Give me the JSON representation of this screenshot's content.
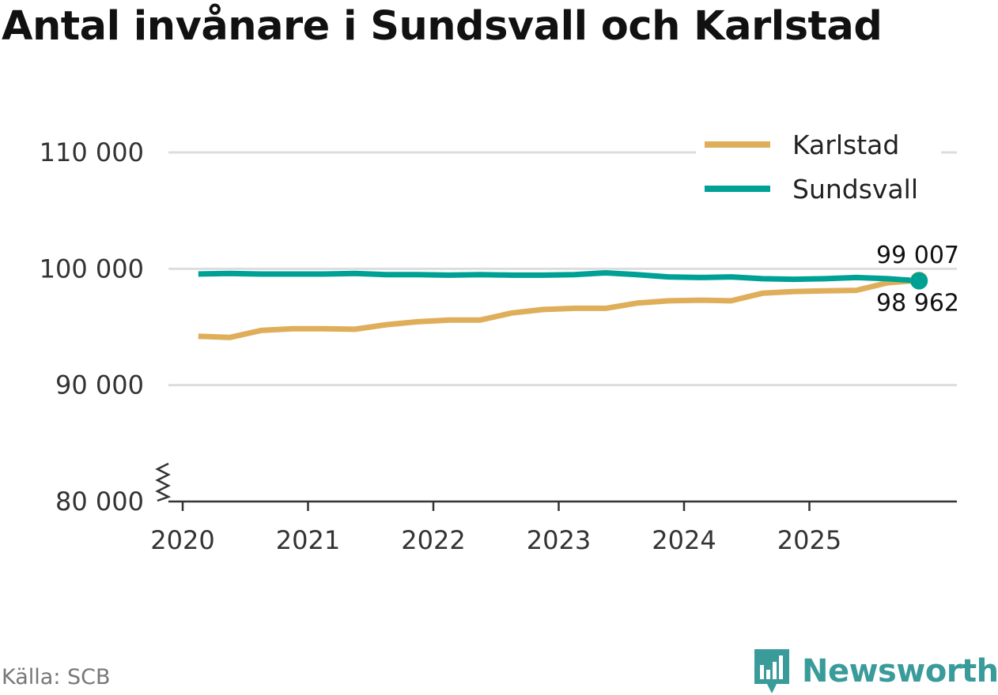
{
  "title": "Antal invånare i Sundsvall och Karlstad",
  "source": "Källa: SCB",
  "brand": "Newsworthy",
  "colors": {
    "karlstad": "#dfae5a",
    "sundsvall": "#00a195",
    "grid": "#dddddd",
    "axis": "#333333",
    "brand": "#3a9b9b"
  },
  "chart_data": {
    "type": "line",
    "title": "Antal invånare i Sundsvall och Karlstad",
    "xlabel": "",
    "ylabel": "",
    "ylim": [
      80000,
      110000
    ],
    "y_ticks": [
      80000,
      90000,
      100000,
      110000
    ],
    "y_tick_labels": [
      "80 000",
      "90 000",
      "100 000",
      "110 000"
    ],
    "x_range": [
      2020.0,
      2026.2
    ],
    "x_ticks": [
      2020,
      2021,
      2022,
      2023,
      2024,
      2025
    ],
    "x_tick_labels": [
      "2020",
      "2021",
      "2022",
      "2023",
      "2024",
      "2025"
    ],
    "grid": true,
    "y_axis_break": true,
    "legend": "top-right",
    "x": [
      2020.125,
      2020.375,
      2020.625,
      2020.875,
      2021.125,
      2021.375,
      2021.625,
      2021.875,
      2022.125,
      2022.375,
      2022.625,
      2022.875,
      2023.125,
      2023.375,
      2023.625,
      2023.875,
      2024.125,
      2024.375,
      2024.625,
      2024.875,
      2025.125,
      2025.375,
      2025.625,
      2025.875
    ],
    "series": [
      {
        "name": "Karlstad",
        "color": "#dfae5a",
        "values": [
          94200,
          94100,
          94700,
          94850,
          94850,
          94800,
          95200,
          95450,
          95600,
          95600,
          96200,
          96500,
          96600,
          96600,
          97050,
          97250,
          97300,
          97250,
          97900,
          98050,
          98100,
          98150,
          98800,
          99007
        ]
      },
      {
        "name": "Sundsvall",
        "color": "#00a195",
        "values": [
          99550,
          99600,
          99550,
          99550,
          99550,
          99600,
          99500,
          99500,
          99450,
          99500,
          99450,
          99450,
          99500,
          99650,
          99500,
          99300,
          99250,
          99300,
          99150,
          99100,
          99150,
          99250,
          99150,
          98962
        ]
      }
    ],
    "annotations": [
      {
        "text": "99 007",
        "series": "Karlstad",
        "position": "above"
      },
      {
        "text": "98 962",
        "series": "Sundsvall",
        "position": "below"
      }
    ]
  }
}
